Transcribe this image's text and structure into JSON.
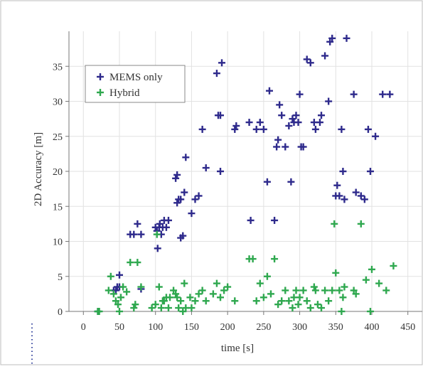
{
  "chart_data": {
    "type": "scatter",
    "xlabel": "time [s]",
    "ylabel": "2D Accuracy [m]",
    "xlim": [
      -20,
      470
    ],
    "ylim": [
      0,
      40
    ],
    "xticks": [
      0,
      50,
      100,
      150,
      200,
      250,
      300,
      350,
      400,
      450
    ],
    "yticks": [
      0,
      5,
      10,
      15,
      20,
      25,
      30,
      35
    ],
    "grid": true,
    "legend_position": "upper-left",
    "marker": "plus",
    "series": [
      {
        "name": "MEMS only",
        "color": "#2e2a8c",
        "points": [
          [
            20,
            0
          ],
          [
            42,
            3
          ],
          [
            45,
            3
          ],
          [
            47,
            3.5
          ],
          [
            50,
            5.2
          ],
          [
            50,
            3.5
          ],
          [
            80,
            3.2
          ],
          [
            65,
            11
          ],
          [
            70,
            11
          ],
          [
            75,
            12.5
          ],
          [
            80,
            11
          ],
          [
            100,
            12
          ],
          [
            102,
            11.5
          ],
          [
            103,
            9
          ],
          [
            105,
            12
          ],
          [
            106,
            12.5
          ],
          [
            108,
            11
          ],
          [
            110,
            12
          ],
          [
            112,
            13
          ],
          [
            115,
            12
          ],
          [
            118,
            13
          ],
          [
            130,
            15.5
          ],
          [
            132,
            16
          ],
          [
            135,
            16
          ],
          [
            128,
            19
          ],
          [
            130,
            19.5
          ],
          [
            135,
            10.5
          ],
          [
            138,
            10.8
          ],
          [
            140,
            17
          ],
          [
            142,
            22
          ],
          [
            150,
            14
          ],
          [
            155,
            16
          ],
          [
            160,
            16.5
          ],
          [
            165,
            26
          ],
          [
            170,
            20.5
          ],
          [
            185,
            34
          ],
          [
            187,
            28
          ],
          [
            190,
            28
          ],
          [
            192,
            35.5
          ],
          [
            190,
            20
          ],
          [
            210,
            26
          ],
          [
            212,
            26.5
          ],
          [
            230,
            27
          ],
          [
            232,
            13
          ],
          [
            240,
            26
          ],
          [
            245,
            27
          ],
          [
            250,
            26
          ],
          [
            255,
            18.5
          ],
          [
            258,
            31.5
          ],
          [
            265,
            13
          ],
          [
            268,
            23.5
          ],
          [
            270,
            24.5
          ],
          [
            272,
            29.5
          ],
          [
            275,
            28
          ],
          [
            280,
            23.5
          ],
          [
            285,
            26.5
          ],
          [
            288,
            18.5
          ],
          [
            290,
            27.5
          ],
          [
            292,
            27
          ],
          [
            295,
            28
          ],
          [
            298,
            27
          ],
          [
            300,
            31
          ],
          [
            302,
            23.5
          ],
          [
            305,
            23.5
          ],
          [
            310,
            36
          ],
          [
            315,
            35.5
          ],
          [
            320,
            27
          ],
          [
            322,
            26
          ],
          [
            328,
            27
          ],
          [
            330,
            28
          ],
          [
            335,
            36.5
          ],
          [
            340,
            30
          ],
          [
            342,
            38.5
          ],
          [
            345,
            39
          ],
          [
            350,
            16.5
          ],
          [
            352,
            18
          ],
          [
            355,
            16.5
          ],
          [
            358,
            26
          ],
          [
            360,
            20
          ],
          [
            362,
            16
          ],
          [
            365,
            39
          ],
          [
            375,
            31
          ],
          [
            378,
            17
          ],
          [
            385,
            16.5
          ],
          [
            390,
            16
          ],
          [
            395,
            26
          ],
          [
            398,
            20
          ],
          [
            405,
            25
          ],
          [
            415,
            31
          ],
          [
            425,
            31
          ]
        ]
      },
      {
        "name": "Hybrid",
        "color": "#2fa84f",
        "points": [
          [
            20,
            0
          ],
          [
            22,
            0
          ],
          [
            35,
            3
          ],
          [
            38,
            5
          ],
          [
            42,
            2.5
          ],
          [
            45,
            1.5
          ],
          [
            48,
            1
          ],
          [
            50,
            0
          ],
          [
            52,
            2
          ],
          [
            55,
            3.5
          ],
          [
            60,
            2.8
          ],
          [
            65,
            7
          ],
          [
            70,
            0.5
          ],
          [
            72,
            1
          ],
          [
            75,
            7
          ],
          [
            80,
            3.5
          ],
          [
            95,
            0.5
          ],
          [
            100,
            1
          ],
          [
            102,
            11
          ],
          [
            105,
            3.5
          ],
          [
            108,
            0.5
          ],
          [
            110,
            1.5
          ],
          [
            112,
            1.5
          ],
          [
            115,
            2
          ],
          [
            118,
            0.5
          ],
          [
            120,
            2
          ],
          [
            125,
            3
          ],
          [
            128,
            2.5
          ],
          [
            130,
            2
          ],
          [
            132,
            0.5
          ],
          [
            135,
            1.5
          ],
          [
            138,
            0
          ],
          [
            140,
            4
          ],
          [
            142,
            0.5
          ],
          [
            148,
            2
          ],
          [
            150,
            0.5
          ],
          [
            155,
            1.5
          ],
          [
            160,
            2.5
          ],
          [
            165,
            3
          ],
          [
            170,
            1.5
          ],
          [
            180,
            2.5
          ],
          [
            185,
            4
          ],
          [
            190,
            2
          ],
          [
            195,
            3
          ],
          [
            200,
            3.5
          ],
          [
            210,
            1.5
          ],
          [
            230,
            7.5
          ],
          [
            235,
            7.5
          ],
          [
            240,
            1.5
          ],
          [
            245,
            4
          ],
          [
            250,
            2
          ],
          [
            255,
            5
          ],
          [
            260,
            2.5
          ],
          [
            265,
            7.5
          ],
          [
            270,
            1
          ],
          [
            275,
            1.5
          ],
          [
            280,
            3
          ],
          [
            285,
            1.5
          ],
          [
            290,
            0.5
          ],
          [
            292,
            2
          ],
          [
            295,
            3
          ],
          [
            298,
            1
          ],
          [
            300,
            2
          ],
          [
            305,
            3
          ],
          [
            310,
            1.5
          ],
          [
            315,
            0.5
          ],
          [
            320,
            3.5
          ],
          [
            322,
            3
          ],
          [
            325,
            1
          ],
          [
            330,
            0.5
          ],
          [
            335,
            3
          ],
          [
            340,
            1.5
          ],
          [
            345,
            3
          ],
          [
            348,
            12.5
          ],
          [
            350,
            5.5
          ],
          [
            355,
            3
          ],
          [
            358,
            0
          ],
          [
            360,
            2
          ],
          [
            362,
            3.5
          ],
          [
            375,
            3
          ],
          [
            378,
            2.5
          ],
          [
            385,
            12.5
          ],
          [
            392,
            4.5
          ],
          [
            398,
            0
          ],
          [
            400,
            6
          ],
          [
            410,
            4
          ],
          [
            420,
            3
          ],
          [
            430,
            6.5
          ]
        ]
      }
    ]
  }
}
